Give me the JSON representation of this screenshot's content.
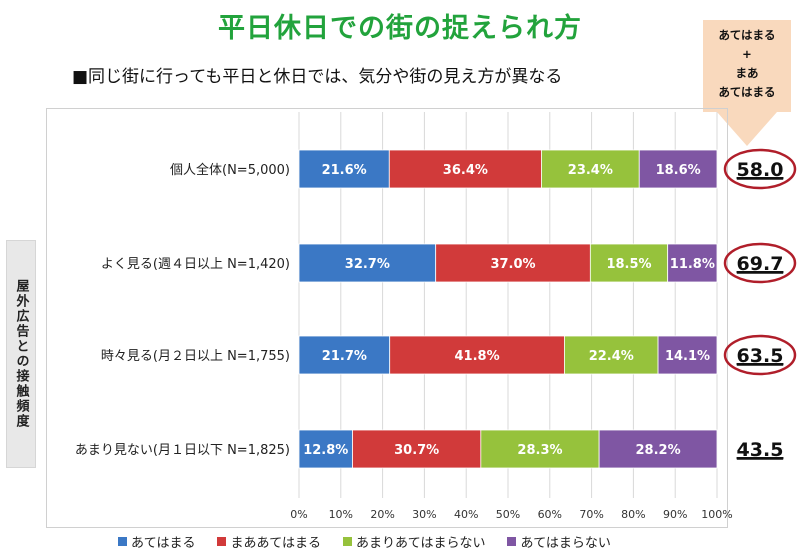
{
  "title": "平日休日での街の捉えられ方",
  "subtitle": "■同じ街に行っても平日と休日では、気分や街の見え方が異なる",
  "callout": {
    "lines": [
      "あてはまる",
      "+",
      "まあ",
      "あてはまる"
    ]
  },
  "yaxis_group_label": "屋外広告との接触頻度",
  "chart_data": {
    "type": "bar",
    "orientation": "horizontal",
    "stacked": true,
    "categories": [
      "個人全体(N=5,000)",
      "よく見る(週４日以上 N=1,420)",
      "時々見る(月２日以上 N=1,755)",
      "あまり見ない(月１日以下 N=1,825)"
    ],
    "series": [
      {
        "name": "あてはまる",
        "color": "#3b78c5",
        "values": [
          21.6,
          32.7,
          21.7,
          12.8
        ]
      },
      {
        "name": "まああてはまる",
        "color": "#d13a3a",
        "values": [
          36.4,
          37.0,
          41.8,
          30.7
        ]
      },
      {
        "name": "あまりあてはまらない",
        "color": "#96c23c",
        "values": [
          23.4,
          18.5,
          22.4,
          28.3
        ]
      },
      {
        "name": "あてはまらない",
        "color": "#7f56a3",
        "values": [
          18.6,
          11.8,
          14.1,
          28.2
        ]
      }
    ],
    "data_labels": [
      [
        "21.6%",
        "36.4%",
        "23.4%",
        "18.6%"
      ],
      [
        "32.7%",
        "37.0%",
        "18.5%",
        "11.8%"
      ],
      [
        "21.7%",
        "41.8%",
        "22.4%",
        "14.1%"
      ],
      [
        "12.8%",
        "30.7%",
        "28.3%",
        "28.2%"
      ]
    ],
    "xlim": [
      0,
      100
    ],
    "xticks": [
      "0%",
      "10%",
      "20%",
      "30%",
      "40%",
      "50%",
      "60%",
      "70%",
      "80%",
      "90%",
      "100%"
    ],
    "grid": true,
    "legend_position": "bottom",
    "totals": [
      {
        "label": "58.0",
        "circled": true
      },
      {
        "label": "69.7",
        "circled": true
      },
      {
        "label": "63.5",
        "circled": true
      },
      {
        "label": "43.5",
        "circled": false
      }
    ],
    "circle_color": "#b01e2a"
  }
}
